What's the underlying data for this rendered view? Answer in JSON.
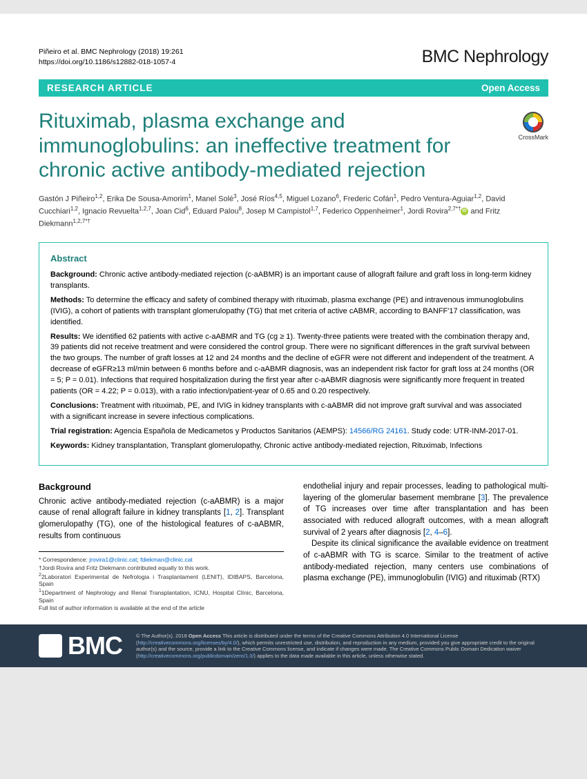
{
  "header": {
    "citation_line1": "Piñeiro et al. BMC Nephrology  (2018) 19:261",
    "citation_line2": "https://doi.org/10.1186/s12882-018-1057-4",
    "journal": "BMC Nephrology"
  },
  "banner": {
    "left": "RESEARCH ARTICLE",
    "right": "Open Access"
  },
  "title": "Rituximab, plasma exchange and immunoglobulins: an ineffective treatment for chronic active antibody-mediated rejection",
  "crossmark_label": "CrossMark",
  "authors_html": "Gastón J Piñeiro<sup>1,2</sup>, Erika De Sousa-Amorim<sup>1</sup>, Manel Solé<sup>3</sup>, José Ríos<sup>4,5</sup>, Miguel Lozano<sup>6</sup>, Frederic Cofán<sup>1</sup>, Pedro Ventura-Aguiar<sup>1,2</sup>, David Cucchiari<sup>1,2</sup>, Ignacio Revuelta<sup>1,2,7</sup>, Joan Cid<sup>6</sup>, Eduard Palou<sup>8</sup>, Josep M Campistol<sup>1,7</sup>, Federico Oppenheimer<sup>1</sup>, Jordi Rovira<sup>2,7*†</sup><span class='orcid-icon'></span> and Fritz Diekmann<sup>1,2,7*†</sup>",
  "abstract": {
    "heading": "Abstract",
    "background_label": "Background:",
    "background": " Chronic active antibody-mediated rejection (c-aABMR) is an important cause of allograft failure and graft loss in long-term kidney transplants.",
    "methods_label": "Methods:",
    "methods": " To determine the efficacy and safety of combined therapy with rituximab, plasma exchange (PE) and intravenous immunoglobulins (IVIG), a cohort of patients with transplant glomerulopathy (TG) that met criteria of active cABMR, according to BANFF'17 classification, was identified.",
    "results_label": "Results:",
    "results": " We identified 62 patients with active c-aABMR and TG (cg ≥ 1). Twenty-three patients were treated with the combination therapy and, 39 patients did not receive treatment and were considered the control group. There were no significant differences in the graft survival between the two groups. The number of graft losses at 12 and 24 months and the decline of eGFR were not different and independent of the treatment. A decrease of eGFR≥13 ml/min between 6 months before and c-aABMR diagnosis, was an independent risk factor for graft loss at 24 months (OR = 5; P = 0.01). Infections that required hospitalization during the first year after c-aABMR diagnosis were significantly more frequent in treated patients (OR = 4.22; P = 0.013), with a ratio infection/patient-year of 0.65 and 0.20 respectively.",
    "conclusions_label": "Conclusions:",
    "conclusions": " Treatment with rituximab, PE, and IVIG in kidney transplants with c-aABMR did not improve graft survival and was associated with a significant increase in severe infectious complications.",
    "trial_label": "Trial registration:",
    "trial_text": " Agencia Española de Medicametos y Productos Sanitarios (AEMPS): ",
    "trial_link": "14566/RG 24161",
    "trial_suffix": ". Study code: UTR-INM-2017-01.",
    "keywords_label": "Keywords:",
    "keywords": " Kidney transplantation, Transplant glomerulopathy, Chronic active antibody-mediated rejection, Rituximab, Infections"
  },
  "body": {
    "heading": "Background",
    "col1_p1a": "Chronic active antibody-mediated rejection (c-aABMR) is a major cause of renal allograft failure in kidney transplants [",
    "ref1": "1",
    "col1_p1b": ", ",
    "ref2": "2",
    "col1_p1c": "]. Transplant glomerulopathy (TG), one of the histological features of c-aABMR, results from continuous",
    "col2_p1a": "endothelial injury and repair processes, leading to pathological multi-layering of the glomerular basement membrane [",
    "ref3": "3",
    "col2_p1b": "]. The prevalence of TG increases over time after transplantation and has been associated with reduced allograft outcomes, with a mean allograft survival of 2 years after diagnosis [",
    "ref2b": "2",
    "col2_p1c": ", ",
    "ref4": "4",
    "col2_p1d": "–",
    "ref6": "6",
    "col2_p1e": "].",
    "col2_p2": "Despite its clinical significance the available evidence on treatment of c-aABMR with TG is scarce. Similar to the treatment of active antibody-mediated rejection, many centers use combinations of plasma exchange (PE), immunoglobulin (IVIG) and rituximab (RTX)"
  },
  "footnotes": {
    "correspondence_label": "* Correspondence: ",
    "email1": "jrovira1@clinic.cat",
    "sep": "; ",
    "email2": "fdiekman@clinic.cat",
    "contrib": "†Jordi Rovira and Fritz Diekmann contributed equally to this work.",
    "aff2": "2Laboratori Experimental de Nefrologia i Trasplantament (LENIT), IDIBAPS, Barcelona, Spain",
    "aff1": "1Department of Nephrology and Renal Transplantation, ICNU, Hospital Clínic, Barcelona, Spain",
    "full": "Full list of author information is available at the end of the article"
  },
  "footer": {
    "logo": "BMC",
    "text_a": "© The Author(s). 2018 ",
    "oa": "Open Access",
    "text_b": " This article is distributed under the terms of the Creative Commons Attribution 4.0 International License (",
    "link1": "http://creativecommons.org/licenses/by/4.0/",
    "text_c": "), which permits unrestricted use, distribution, and reproduction in any medium, provided you give appropriate credit to the original author(s) and the source, provide a link to the Creative Commons license, and indicate if changes were made. The Creative Commons Public Domain Dedication waiver (",
    "link2": "http://creativecommons.org/publicdomain/zero/1.0/",
    "text_d": ") applies to the data made available in this article, unless otherwise stated."
  },
  "colors": {
    "teal": "#1fc0b0",
    "heading_teal": "#1d7f7a",
    "link_blue": "#0066cc",
    "footer_bg": "#2a3b4d"
  }
}
